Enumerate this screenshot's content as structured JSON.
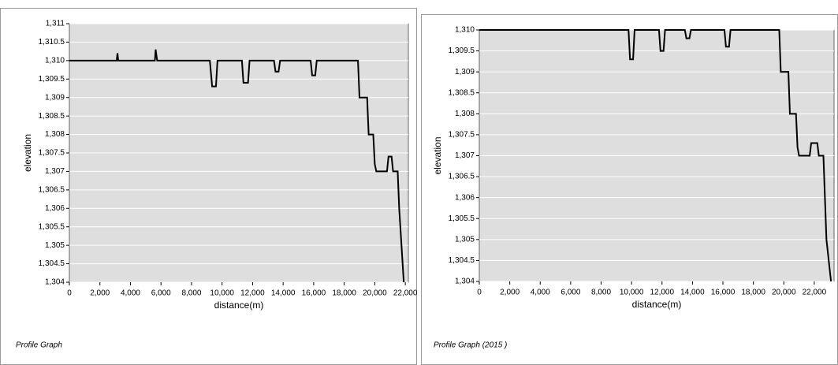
{
  "chart_data": [
    {
      "type": "line",
      "title": "Profile Graph",
      "x_label": "distance(m)",
      "y_label": "elevation",
      "color": "#000000",
      "grid": true,
      "x": [
        0,
        3100,
        3150,
        3200,
        5600,
        5650,
        5750,
        9200,
        9350,
        9600,
        9700,
        11300,
        11400,
        11700,
        11800,
        13400,
        13500,
        13700,
        13800,
        15800,
        15900,
        16100,
        16200,
        18900,
        19000,
        19500,
        19600,
        19900,
        20000,
        20100,
        20800,
        20900,
        21100,
        21200,
        21500,
        21600,
        21750,
        21900
      ],
      "values": [
        1310,
        1310,
        1310.2,
        1310,
        1310,
        1310.3,
        1310,
        1310,
        1309.3,
        1309.3,
        1310,
        1310,
        1309.4,
        1309.4,
        1310,
        1310,
        1309.7,
        1309.7,
        1310,
        1310,
        1309.6,
        1309.6,
        1310,
        1310,
        1309,
        1309,
        1308,
        1308,
        1307.2,
        1307,
        1307,
        1307.4,
        1307.4,
        1307,
        1307,
        1306,
        1305,
        1304
      ],
      "xlim": [
        0,
        22200
      ],
      "ylim": [
        1304,
        1311
      ],
      "xticks": [
        0,
        {
          "value": 2000,
          "label": "2,000"
        },
        {
          "value": 4000,
          "label": "4,000"
        },
        {
          "value": 6000,
          "label": "6,000"
        },
        {
          "value": 8000,
          "label": "8,000"
        },
        {
          "value": 10000,
          "label": "10,000"
        },
        {
          "value": 12000,
          "label": "12,000"
        },
        {
          "value": 14000,
          "label": "14,000"
        },
        {
          "value": 16000,
          "label": "16,000"
        },
        {
          "value": 18000,
          "label": "18,000"
        },
        {
          "value": 20000,
          "label": "20,000"
        },
        {
          "value": 22000,
          "label": "22,000"
        }
      ],
      "yticks": [
        {
          "value": 1304,
          "label": "1,304"
        },
        {
          "value": 1304.5,
          "label": "1,304.5"
        },
        {
          "value": 1305,
          "label": "1,305"
        },
        {
          "value": 1305.5,
          "label": "1,305.5"
        },
        {
          "value": 1306,
          "label": "1,306"
        },
        {
          "value": 1306.5,
          "label": "1,306.5"
        },
        {
          "value": 1307,
          "label": "1,307"
        },
        {
          "value": 1307.5,
          "label": "1,307.5"
        },
        {
          "value": 1308,
          "label": "1,308"
        },
        {
          "value": 1308.5,
          "label": "1,308.5"
        },
        {
          "value": 1309,
          "label": "1,309"
        },
        {
          "value": 1309.5,
          "label": "1,309.5"
        },
        {
          "value": 1310,
          "label": "1,310"
        },
        {
          "value": 1310.5,
          "label": "1,310.5"
        },
        {
          "value": 1311,
          "label": "1,311"
        }
      ]
    },
    {
      "type": "line",
      "title": "Profile Graph (2015 )",
      "x_label": "distance(m)",
      "y_label": "elevation",
      "color": "#000000",
      "grid": true,
      "x": [
        0,
        9800,
        9900,
        10100,
        10200,
        11800,
        11900,
        12100,
        12200,
        13500,
        13600,
        13800,
        13900,
        16100,
        16200,
        16400,
        16500,
        19700,
        19800,
        20300,
        20400,
        20800,
        20900,
        21000,
        21700,
        21800,
        22200,
        22300,
        22600,
        22800,
        23100
      ],
      "values": [
        1310,
        1310,
        1309.3,
        1309.3,
        1310,
        1310,
        1309.5,
        1309.5,
        1310,
        1310,
        1309.8,
        1309.8,
        1310,
        1310,
        1309.6,
        1309.6,
        1310,
        1310,
        1309,
        1309,
        1308,
        1308,
        1307.2,
        1307,
        1307,
        1307.3,
        1307.3,
        1307,
        1307,
        1305,
        1304
      ],
      "xlim": [
        0,
        23300
      ],
      "ylim": [
        1304,
        1310
      ],
      "xticks": [
        0,
        {
          "value": 2000,
          "label": "2,000"
        },
        {
          "value": 4000,
          "label": "4,000"
        },
        {
          "value": 6000,
          "label": "6,000"
        },
        {
          "value": 8000,
          "label": "8,000"
        },
        {
          "value": 10000,
          "label": "10,000"
        },
        {
          "value": 12000,
          "label": "12,000"
        },
        {
          "value": 14000,
          "label": "14,000"
        },
        {
          "value": 16000,
          "label": "16,000"
        },
        {
          "value": 18000,
          "label": "18,000"
        },
        {
          "value": 20000,
          "label": "20,000"
        },
        {
          "value": 22000,
          "label": "22,000"
        }
      ],
      "yticks": [
        {
          "value": 1304,
          "label": "1,304"
        },
        {
          "value": 1304.5,
          "label": "1,304.5"
        },
        {
          "value": 1305,
          "label": "1,305"
        },
        {
          "value": 1305.5,
          "label": "1,305.5"
        },
        {
          "value": 1306,
          "label": "1,306"
        },
        {
          "value": 1306.5,
          "label": "1,306.5"
        },
        {
          "value": 1307,
          "label": "1,307"
        },
        {
          "value": 1307.5,
          "label": "1,307.5"
        },
        {
          "value": 1308,
          "label": "1,308"
        },
        {
          "value": 1308.5,
          "label": "1,308.5"
        },
        {
          "value": 1309,
          "label": "1,309"
        },
        {
          "value": 1309.5,
          "label": "1,309.5"
        },
        {
          "value": 1310,
          "label": "1,310"
        }
      ]
    }
  ]
}
